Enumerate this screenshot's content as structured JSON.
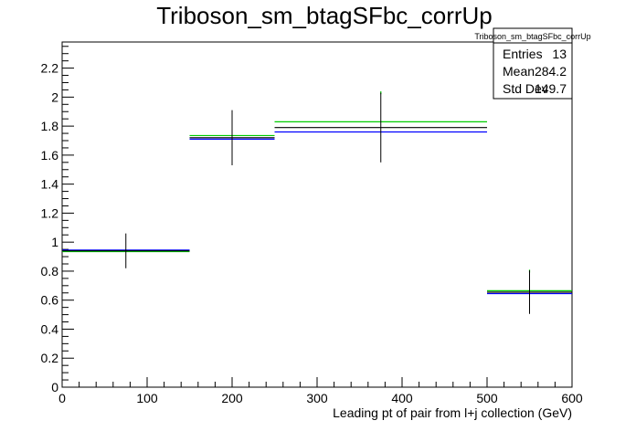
{
  "chart_data": {
    "type": "histogram",
    "title": "Triboson_sm_btagSFbc_corrUp",
    "xlabel": "Leading pt of pair from l+j collection (GeV)",
    "ylabel": "",
    "xlim": [
      0,
      600
    ],
    "ylim": [
      0,
      2.38
    ],
    "x_ticks": [
      0,
      100,
      200,
      300,
      400,
      500,
      600
    ],
    "y_ticks": [
      0,
      0.2,
      0.4,
      0.6,
      0.8,
      1,
      1.2,
      1.4,
      1.6,
      1.8,
      2,
      2.2
    ],
    "x_tick_labels": [
      "0",
      "100",
      "200",
      "300",
      "400",
      "500",
      "600"
    ],
    "y_tick_labels": [
      "0",
      "0.2",
      "0.4",
      "0.6",
      "0.8",
      "1",
      "1.2",
      "1.4",
      "1.6",
      "1.8",
      "2",
      "2.2"
    ],
    "bins": [
      [
        0,
        150
      ],
      [
        150,
        250
      ],
      [
        250,
        500
      ],
      [
        500,
        600
      ]
    ],
    "series": [
      {
        "color": "#000000",
        "values": [
          0.94,
          1.72,
          1.79,
          0.655
        ],
        "errors": [
          0.12,
          0.19,
          0.24,
          0.15
        ]
      },
      {
        "color": "#0000ff",
        "values": [
          0.945,
          1.71,
          1.76,
          0.645
        ]
      },
      {
        "color": "#00cc00",
        "values": [
          0.935,
          1.735,
          1.83,
          0.665
        ],
        "error_top_tip": [
          null,
          null,
          2.04,
          0.81
        ]
      }
    ],
    "stats_box": {
      "title": "Triboson_sm_btagSFbc_corrUp",
      "rows": [
        {
          "label": "Entries",
          "value": "13"
        },
        {
          "label": "Mean",
          "value": "284.2"
        },
        {
          "label": "Std Dev",
          "value": "149.7"
        }
      ]
    },
    "grid": false,
    "legend": "none"
  }
}
